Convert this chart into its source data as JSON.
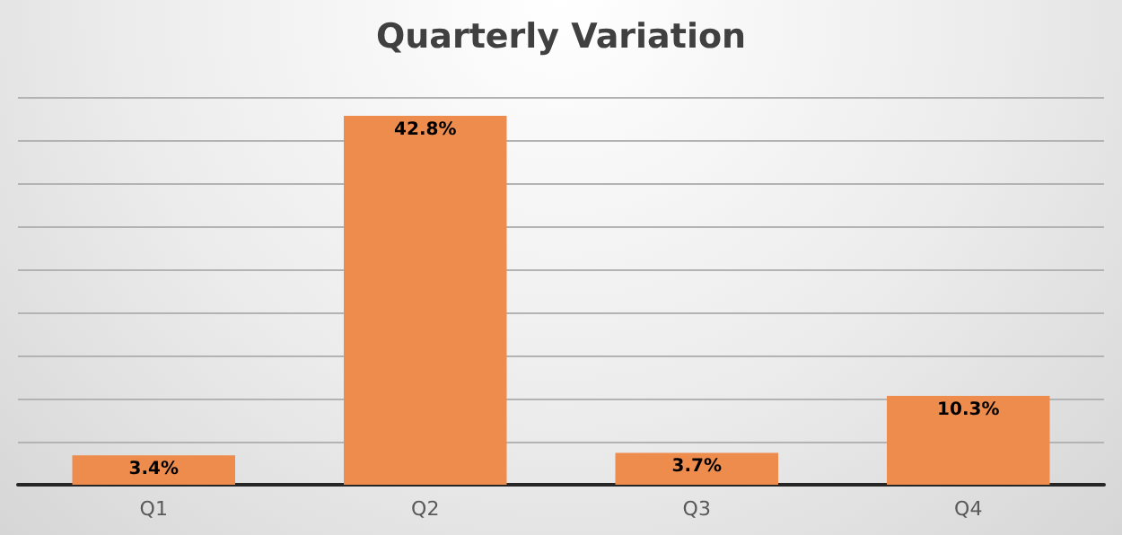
{
  "chart_data": {
    "type": "bar",
    "title": "Quarterly Variation",
    "categories": [
      "Q1",
      "Q2",
      "Q3",
      "Q4"
    ],
    "values": [
      3.4,
      42.8,
      3.7,
      10.3
    ],
    "value_labels": [
      "3.4%",
      "42.8%",
      "3.7%",
      "10.3%"
    ],
    "color": "#ed8c4d",
    "ylim": [
      0,
      45
    ],
    "yticks": [
      {
        "value": 0,
        "label": null
      },
      {
        "value": 5,
        "label": null
      },
      {
        "value": 10,
        "label": null
      },
      {
        "value": 15,
        "label": null
      },
      {
        "value": 20,
        "label": null
      },
      {
        "value": 25,
        "label": null
      },
      {
        "value": 30,
        "label": null
      },
      {
        "value": 35,
        "label": null
      },
      {
        "value": 40,
        "label": null
      },
      {
        "value": 45,
        "label": null
      }
    ],
    "tick_labels": "x",
    "grid": "y"
  }
}
